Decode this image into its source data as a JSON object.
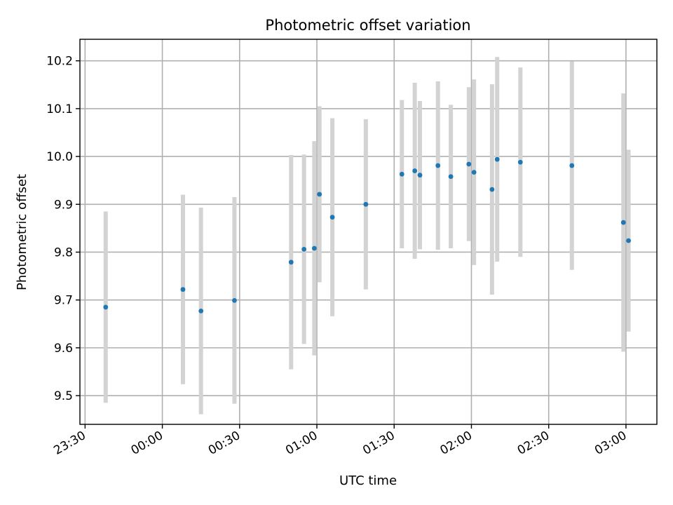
{
  "chart_data": {
    "type": "scatter",
    "title": "Photometric offset variation",
    "xlabel": "UTC time",
    "ylabel": "Photometric offset",
    "grid": true,
    "x_is_time": true,
    "xlim": [
      "23:28",
      "03:12"
    ],
    "ylim": [
      9.44,
      10.245
    ],
    "xticks": [
      "23:30",
      "00:00",
      "00:30",
      "01:00",
      "01:30",
      "02:00",
      "02:30",
      "03:00"
    ],
    "yticks": [
      9.5,
      9.6,
      9.7,
      9.8,
      9.9,
      10.0,
      10.1,
      10.2
    ],
    "ytick_labels": [
      "9.5",
      "9.6",
      "9.7",
      "9.8",
      "9.9",
      "10.0",
      "10.1",
      "10.2"
    ],
    "marker_color": "#1f77b4",
    "errorbar_color": "#d3d3d3",
    "points": [
      {
        "t": "23:38",
        "y": 9.685,
        "err": 0.2
      },
      {
        "t": "00:08",
        "y": 9.722,
        "err": 0.198
      },
      {
        "t": "00:15",
        "y": 9.677,
        "err": 0.216
      },
      {
        "t": "00:28",
        "y": 9.699,
        "err": 0.216
      },
      {
        "t": "00:50",
        "y": 9.779,
        "err": 0.224
      },
      {
        "t": "00:55",
        "y": 9.806,
        "err": 0.198
      },
      {
        "t": "00:59",
        "y": 9.808,
        "err": 0.224
      },
      {
        "t": "01:01",
        "y": 9.921,
        "err": 0.184
      },
      {
        "t": "01:06",
        "y": 9.873,
        "err": 0.207
      },
      {
        "t": "01:19",
        "y": 9.9,
        "err": 0.178
      },
      {
        "t": "01:33",
        "y": 9.963,
        "err": 0.155
      },
      {
        "t": "01:38",
        "y": 9.97,
        "err": 0.184
      },
      {
        "t": "01:40",
        "y": 9.961,
        "err": 0.155
      },
      {
        "t": "01:47",
        "y": 9.981,
        "err": 0.176
      },
      {
        "t": "01:52",
        "y": 9.958,
        "err": 0.15
      },
      {
        "t": "01:59",
        "y": 9.984,
        "err": 0.161
      },
      {
        "t": "02:01",
        "y": 9.967,
        "err": 0.194
      },
      {
        "t": "02:08",
        "y": 9.931,
        "err": 0.22
      },
      {
        "t": "02:10",
        "y": 9.994,
        "err": 0.214
      },
      {
        "t": "02:19",
        "y": 9.988,
        "err": 0.198
      },
      {
        "t": "02:39",
        "y": 9.981,
        "err": 0.218
      },
      {
        "t": "02:59",
        "y": 9.862,
        "err": 0.27
      },
      {
        "t": "03:01",
        "y": 9.824,
        "err": 0.19
      }
    ]
  }
}
